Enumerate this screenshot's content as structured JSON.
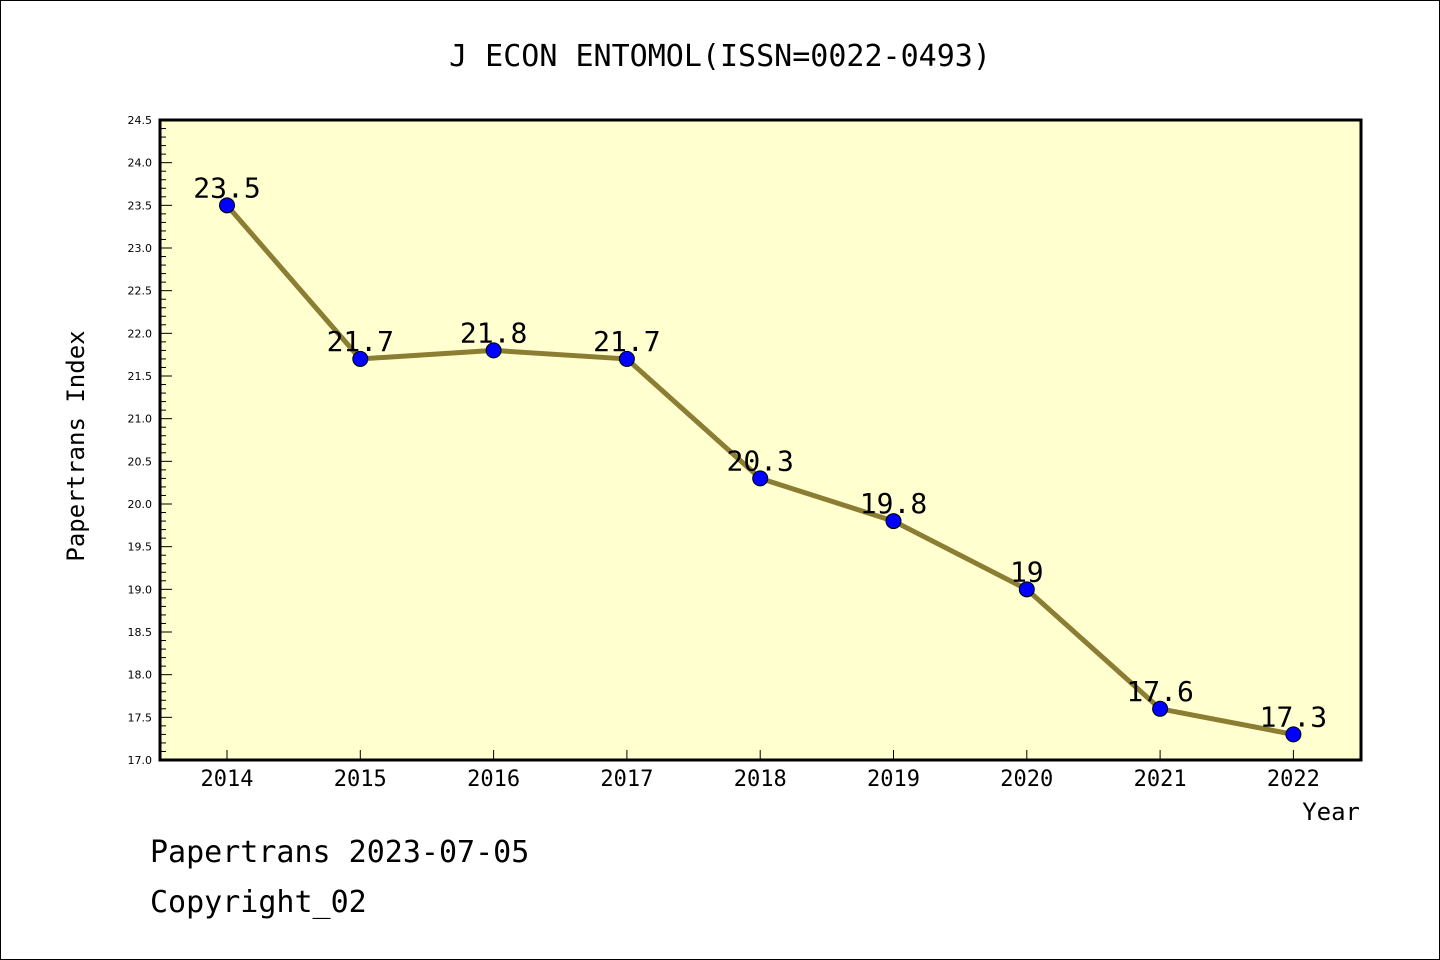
{
  "chart_data": {
    "type": "line",
    "title": "J ECON ENTOMOL(ISSN=0022-0493)",
    "xlabel": "Year",
    "ylabel": "Papertrans Index",
    "categories": [
      "2014",
      "2015",
      "2016",
      "2017",
      "2018",
      "2019",
      "2020",
      "2021",
      "2022"
    ],
    "series": [
      {
        "values": [
          23.5,
          21.7,
          21.8,
          21.7,
          20.3,
          19.8,
          19.0,
          17.6,
          17.3
        ],
        "labels": [
          "23.5",
          "21.7",
          "21.8",
          "21.7",
          "20.3",
          "19.8",
          "19",
          "17.6",
          "17.3"
        ]
      }
    ],
    "ylim": [
      17.0,
      24.5
    ],
    "yticks": [
      "17.0",
      "17.5",
      "18.0",
      "18.5",
      "19.0",
      "19.5",
      "20.0",
      "20.5",
      "21.0",
      "21.5",
      "22.0",
      "22.5",
      "23.0",
      "23.5",
      "24.0",
      "24.5"
    ],
    "grid": false,
    "colors": {
      "plot_background": "#ffffd0",
      "line": "#8b7d32",
      "marker": "#0000ff"
    }
  },
  "footer": {
    "line1": "Papertrans 2023-07-05",
    "line2": "Copyright_02"
  }
}
